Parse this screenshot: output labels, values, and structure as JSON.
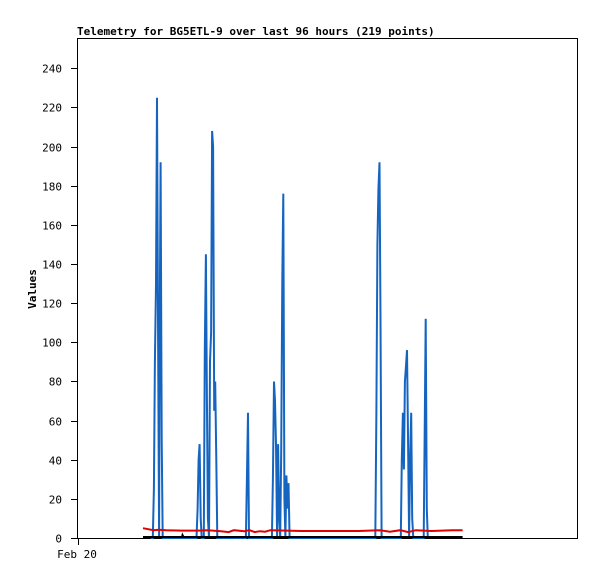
{
  "chart_data": {
    "type": "line",
    "title": "Telemetry for BG5ETL-9 over last 96 hours (219 points)",
    "ylabel": "Values",
    "xlabel": "",
    "x_tick_labels": [
      "Feb 20"
    ],
    "y_ticks": [
      0,
      20,
      40,
      60,
      80,
      100,
      120,
      140,
      160,
      180,
      200,
      220,
      240
    ],
    "ylim": [
      0,
      255
    ],
    "x_domain_hours": [
      0,
      96
    ],
    "grid": false,
    "legend": "none",
    "series": [
      {
        "color": "#1565c0",
        "points": [
          [
            14.0,
            0
          ],
          [
            14.4,
            0
          ],
          [
            14.6,
            25
          ],
          [
            14.8,
            90
          ],
          [
            15.0,
            130
          ],
          [
            15.2,
            225
          ],
          [
            15.4,
            112
          ],
          [
            15.6,
            0
          ],
          [
            15.7,
            95
          ],
          [
            15.9,
            192
          ],
          [
            16.1,
            50
          ],
          [
            16.3,
            0
          ],
          [
            22.8,
            0
          ],
          [
            23.0,
            15
          ],
          [
            23.2,
            40
          ],
          [
            23.4,
            48
          ],
          [
            23.6,
            10
          ],
          [
            23.8,
            0
          ],
          [
            24.2,
            0
          ],
          [
            24.4,
            96
          ],
          [
            24.6,
            145
          ],
          [
            24.8,
            72
          ],
          [
            25.0,
            10
          ],
          [
            25.2,
            0
          ],
          [
            25.4,
            90
          ],
          [
            25.6,
            105
          ],
          [
            25.8,
            208
          ],
          [
            26.0,
            200
          ],
          [
            26.2,
            65
          ],
          [
            26.4,
            80
          ],
          [
            26.6,
            40
          ],
          [
            26.8,
            0
          ],
          [
            32.3,
            0
          ],
          [
            32.5,
            30
          ],
          [
            32.7,
            64
          ],
          [
            32.9,
            0
          ],
          [
            37.3,
            0
          ],
          [
            37.5,
            30
          ],
          [
            37.7,
            80
          ],
          [
            37.9,
            70
          ],
          [
            38.1,
            48
          ],
          [
            38.3,
            0
          ],
          [
            38.5,
            48
          ],
          [
            38.7,
            10
          ],
          [
            38.9,
            0
          ],
          [
            39.1,
            44
          ],
          [
            39.3,
            132
          ],
          [
            39.5,
            176
          ],
          [
            39.7,
            20
          ],
          [
            39.9,
            0
          ],
          [
            40.1,
            32
          ],
          [
            40.3,
            15
          ],
          [
            40.5,
            28
          ],
          [
            40.7,
            0
          ],
          [
            57.2,
            0
          ],
          [
            57.4,
            65
          ],
          [
            57.6,
            150
          ],
          [
            57.8,
            178
          ],
          [
            58.0,
            192
          ],
          [
            58.2,
            112
          ],
          [
            58.4,
            0
          ],
          [
            62.1,
            0
          ],
          [
            62.3,
            40
          ],
          [
            62.5,
            64
          ],
          [
            62.7,
            35
          ],
          [
            62.9,
            80
          ],
          [
            63.1,
            88
          ],
          [
            63.3,
            96
          ],
          [
            63.5,
            48
          ],
          [
            63.7,
            0
          ],
          [
            63.9,
            40
          ],
          [
            64.1,
            64
          ],
          [
            64.3,
            10
          ],
          [
            64.5,
            0
          ],
          [
            66.5,
            0
          ],
          [
            66.7,
            55
          ],
          [
            66.9,
            112
          ],
          [
            67.1,
            15
          ],
          [
            67.3,
            0
          ]
        ]
      },
      {
        "color": "#e00000",
        "points": [
          [
            12.5,
            5.0
          ],
          [
            13.5,
            4.5
          ],
          [
            14.5,
            4.0
          ],
          [
            15.5,
            4.2
          ],
          [
            17.0,
            4.0
          ],
          [
            20.0,
            3.8
          ],
          [
            23.0,
            3.8
          ],
          [
            25.0,
            4.0
          ],
          [
            27.5,
            3.5
          ],
          [
            29.0,
            3.0
          ],
          [
            30.0,
            4.0
          ],
          [
            32.0,
            3.5
          ],
          [
            33.0,
            4.0
          ],
          [
            34.0,
            3.0
          ],
          [
            35.0,
            3.5
          ],
          [
            36.0,
            3.2
          ],
          [
            37.0,
            4.0
          ],
          [
            40.0,
            3.8
          ],
          [
            43.0,
            3.6
          ],
          [
            46.0,
            3.6
          ],
          [
            50.0,
            3.6
          ],
          [
            54.0,
            3.6
          ],
          [
            58.0,
            4.0
          ],
          [
            60.0,
            3.2
          ],
          [
            62.0,
            4.0
          ],
          [
            63.5,
            3.0
          ],
          [
            65.0,
            4.0
          ],
          [
            68.0,
            3.6
          ],
          [
            72.0,
            4.0
          ],
          [
            74.0,
            4.0
          ]
        ]
      },
      {
        "color": "#000000",
        "points": [
          [
            12.5,
            0.5
          ],
          [
            20.0,
            0.5
          ],
          [
            20.1,
            1.5
          ],
          [
            20.3,
            0.5
          ],
          [
            74.0,
            0.5
          ]
        ]
      }
    ]
  }
}
